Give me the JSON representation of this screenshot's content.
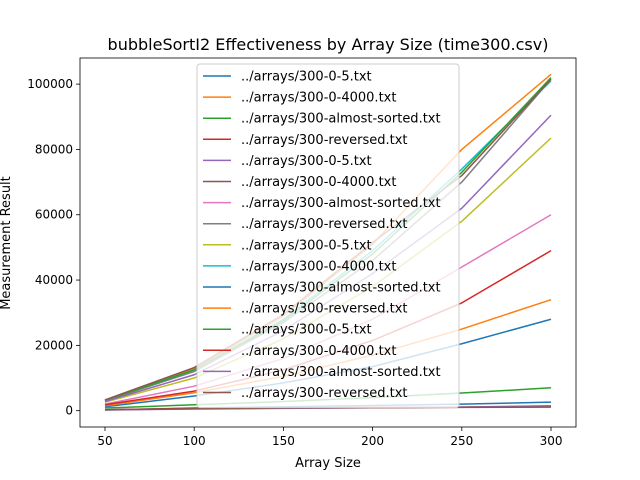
{
  "chart_data": {
    "type": "line",
    "title": "bubbleSortI2 Effectiveness by Array Size (time300.csv)",
    "xlabel": "Array Size",
    "ylabel": "Measurement Result",
    "xlim": [
      36,
      314
    ],
    "ylim": [
      -5000,
      108000
    ],
    "xticks": [
      50,
      100,
      150,
      200,
      250,
      300
    ],
    "yticks": [
      0,
      20000,
      40000,
      60000,
      80000,
      100000
    ],
    "xtick_labels": [
      "50",
      "100",
      "150",
      "200",
      "250",
      "300"
    ],
    "ytick_labels": [
      "0",
      "20000",
      "40000",
      "60000",
      "80000",
      "100000"
    ],
    "legend_position": "top-center",
    "x": [
      50,
      100,
      150,
      200,
      250,
      300
    ],
    "series": [
      {
        "name": "../arrays/300-0-5.txt",
        "color": "#1f77b4",
        "values": [
          200,
          800,
          1200,
          1600,
          2000,
          2600
        ]
      },
      {
        "name": "../arrays/300-0-4000.txt",
        "color": "#ff7f0e",
        "values": [
          3200,
          12800,
          29000,
          51000,
          80000,
          103000
        ]
      },
      {
        "name": "../arrays/300-almost-sorted.txt",
        "color": "#2ca02c",
        "values": [
          800,
          1800,
          2800,
          4000,
          5400,
          7000
        ]
      },
      {
        "name": "../arrays/300-reversed.txt",
        "color": "#d62728",
        "values": [
          300,
          700,
          900,
          1000,
          1100,
          1300
        ]
      },
      {
        "name": "../arrays/300-0-5.txt",
        "color": "#9467bd",
        "values": [
          200,
          500,
          700,
          900,
          1100,
          1500
        ]
      },
      {
        "name": "../arrays/300-0-4000.txt",
        "color": "#8c564b",
        "values": [
          300,
          600,
          800,
          900,
          1000,
          1100
        ]
      },
      {
        "name": "../arrays/300-almost-sorted.txt",
        "color": "#e377c2",
        "values": [
          2000,
          7500,
          16000,
          28000,
          44000,
          60000
        ]
      },
      {
        "name": "../arrays/300-reversed.txt",
        "color": "#7f7f7f",
        "values": [
          3000,
          12000,
          27000,
          46000,
          70000,
          101500
        ]
      },
      {
        "name": "../arrays/300-0-5.txt",
        "color": "#bcbd22",
        "values": [
          2600,
          10000,
          22000,
          38000,
          58000,
          83500
        ]
      },
      {
        "name": "../arrays/300-0-4000.txt",
        "color": "#17becf",
        "values": [
          3200,
          12500,
          28000,
          49000,
          74000,
          101000
        ]
      },
      {
        "name": "../arrays/300-almost-sorted.txt",
        "color": "#1f77b4",
        "values": [
          1200,
          4500,
          8500,
          13500,
          20500,
          28000
        ]
      },
      {
        "name": "../arrays/300-reversed.txt",
        "color": "#ff7f0e",
        "values": [
          1500,
          5500,
          10500,
          17000,
          25000,
          34000
        ]
      },
      {
        "name": "../arrays/300-0-5.txt",
        "color": "#2ca02c",
        "values": [
          3100,
          12500,
          27500,
          48000,
          73000,
          102000
        ]
      },
      {
        "name": "../arrays/300-0-4000.txt",
        "color": "#d62728",
        "values": [
          1800,
          6000,
          12500,
          21500,
          33000,
          49000
        ]
      },
      {
        "name": "../arrays/300-almost-sorted.txt",
        "color": "#9467bd",
        "values": [
          2800,
          11000,
          24500,
          42000,
          62000,
          90500
        ]
      },
      {
        "name": "../arrays/300-reversed.txt",
        "color": "#8c564b",
        "values": [
          3300,
          13200,
          29500,
          51500,
          72000,
          101500
        ]
      }
    ]
  }
}
